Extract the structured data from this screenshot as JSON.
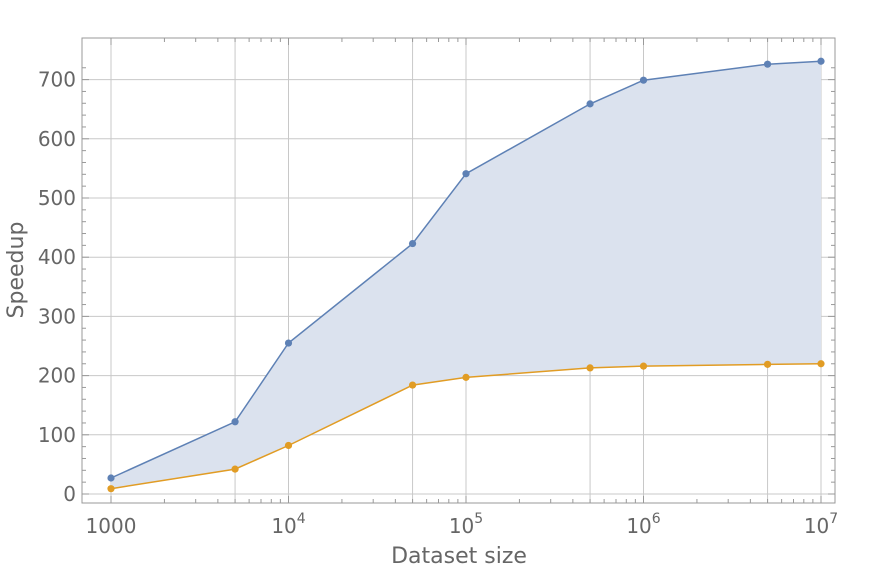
{
  "chart_data": {
    "type": "line",
    "title": "",
    "xlabel": "Dataset size",
    "ylabel": "Speedup",
    "x_scale": "log",
    "xlim": [
      1000,
      10000000
    ],
    "ylim": [
      -10,
      730
    ],
    "grid": true,
    "x_tick_labels": [
      {
        "value": 1000,
        "base": "1000",
        "exp": ""
      },
      {
        "value": 10000,
        "base": "10",
        "exp": "4"
      },
      {
        "value": 100000,
        "base": "10",
        "exp": "5"
      },
      {
        "value": 1000000,
        "base": "10",
        "exp": "6"
      },
      {
        "value": 10000000,
        "base": "10",
        "exp": "7"
      }
    ],
    "y_ticks": [
      0,
      100,
      200,
      300,
      400,
      500,
      600,
      700
    ],
    "x": [
      1000,
      5000,
      10000,
      50000,
      100000,
      500000,
      1000000,
      5000000,
      10000000
    ],
    "series": [
      {
        "color": "#5e81b5",
        "values": [
          27,
          122,
          255,
          423,
          541,
          659,
          699,
          726,
          731
        ]
      },
      {
        "color": "#e19c24",
        "values": [
          9,
          42,
          82,
          184,
          197,
          213,
          216,
          219,
          220
        ]
      }
    ],
    "fill_between": {
      "color": "#dbe2ee"
    }
  }
}
